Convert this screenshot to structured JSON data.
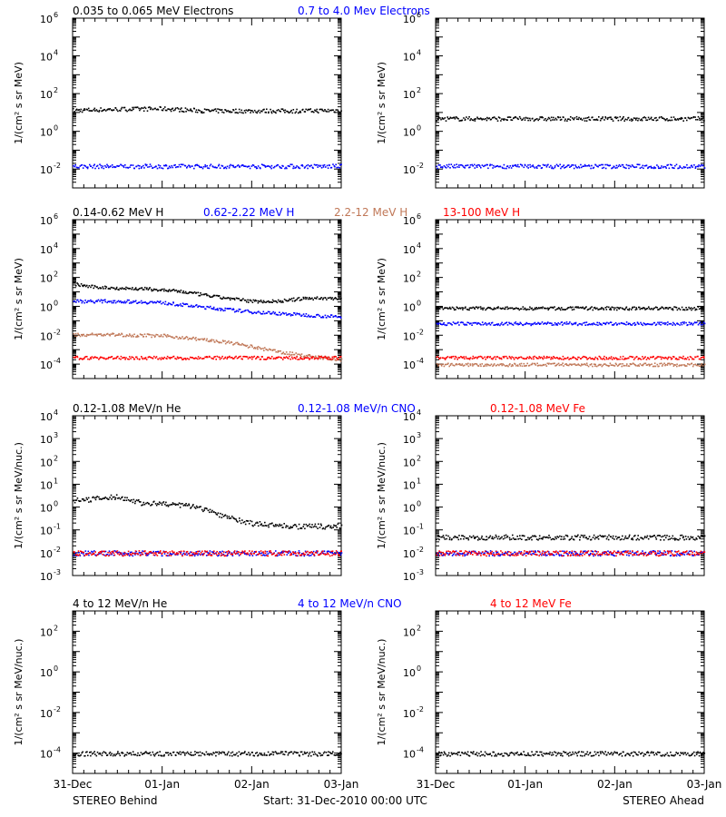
{
  "footer": {
    "left": "STEREO Behind",
    "center": "Start: 31-Dec-2010 00:00 UTC",
    "right": "STEREO Ahead"
  },
  "x_ticks": [
    "31-Dec",
    "01-Jan",
    "02-Jan",
    "03-Jan"
  ],
  "colors": {
    "black": "#000000",
    "blue": "#0000ff",
    "brown": "#c07858",
    "red": "#ff0000"
  },
  "chart_data": [
    {
      "id": "electrons-behind",
      "type": "scatter",
      "side": "behind",
      "titles": [
        {
          "text": "0.035 to 0.065 MeV Electrons",
          "color": "#000000"
        },
        {
          "text": "0.7 to 4.0 Mev Electrons",
          "color": "#0000ff"
        }
      ],
      "ylabel": "1/(cm² s sr MeV)",
      "yscale": "log",
      "ylim": [
        0.001,
        1000000
      ],
      "yticks": [
        {
          "exp": "-2"
        },
        {
          "exp": "0"
        },
        {
          "exp": "2"
        },
        {
          "exp": "4"
        },
        {
          "exp": "6"
        }
      ],
      "x_unit": "days since 31-Dec-2010 00:00 UTC",
      "xlim": [
        0,
        3
      ],
      "series": [
        {
          "color": "#000000",
          "x": [
            0,
            0.5,
            1,
            1.5,
            2,
            2.5,
            3
          ],
          "y": [
            14,
            16,
            17,
            13,
            13,
            13,
            14
          ]
        },
        {
          "color": "#0000ff",
          "x": [
            0,
            1,
            2,
            3
          ],
          "y": [
            0.015,
            0.015,
            0.015,
            0.015
          ]
        }
      ]
    },
    {
      "id": "electrons-ahead",
      "type": "scatter",
      "side": "ahead",
      "titles": [],
      "ylabel": "1/(cm² s sr MeV)",
      "yscale": "log",
      "ylim": [
        0.001,
        1000000
      ],
      "yticks": [
        {
          "exp": "-2"
        },
        {
          "exp": "0"
        },
        {
          "exp": "2"
        },
        {
          "exp": "4"
        },
        {
          "exp": "6"
        }
      ],
      "xlim": [
        0,
        3
      ],
      "series": [
        {
          "color": "#000000",
          "x": [
            0,
            1,
            2,
            3
          ],
          "y": [
            5,
            5,
            5,
            5
          ]
        },
        {
          "color": "#0000ff",
          "x": [
            0,
            1,
            2,
            3
          ],
          "y": [
            0.015,
            0.015,
            0.015,
            0.015
          ]
        }
      ]
    },
    {
      "id": "protons-behind",
      "type": "scatter",
      "side": "behind",
      "titles": [
        {
          "text": "0.14-0.62 MeV H",
          "color": "#000000"
        },
        {
          "text": "0.62-2.22 MeV H",
          "color": "#0000ff"
        },
        {
          "text": "2.2-12 MeV H",
          "color": "#c07858"
        },
        {
          "text": "13-100 MeV H",
          "color": "#ff0000"
        }
      ],
      "ylabel": "1/(cm² s sr MeV)",
      "yscale": "log",
      "ylim": [
        1e-05,
        1000000
      ],
      "yticks": [
        {
          "exp": "-4"
        },
        {
          "exp": "-2"
        },
        {
          "exp": "0"
        },
        {
          "exp": "2"
        },
        {
          "exp": "4"
        },
        {
          "exp": "6"
        }
      ],
      "xlim": [
        0,
        3
      ],
      "series": [
        {
          "color": "#000000",
          "x": [
            0,
            0.2,
            0.5,
            0.8,
            1.2,
            1.6,
            2.0,
            2.3,
            2.6,
            3.0
          ],
          "y": [
            40,
            25,
            20,
            18,
            12,
            5,
            2.5,
            2.5,
            4,
            4
          ]
        },
        {
          "color": "#0000ff",
          "x": [
            0,
            0.5,
            1.0,
            1.5,
            2.0,
            2.5,
            3.0
          ],
          "y": [
            2.5,
            2.5,
            2.0,
            0.9,
            0.45,
            0.3,
            0.2
          ]
        },
        {
          "color": "#c07858",
          "x": [
            0,
            0.5,
            1.0,
            1.4,
            1.8,
            2.2,
            2.5,
            2.8,
            3.0
          ],
          "y": [
            0.012,
            0.012,
            0.01,
            0.006,
            0.003,
            0.001,
            0.0005,
            0.0003,
            0.0002
          ]
        },
        {
          "color": "#ff0000",
          "x": [
            0,
            1,
            2,
            3
          ],
          "y": [
            0.0003,
            0.0003,
            0.0003,
            0.0003
          ]
        }
      ]
    },
    {
      "id": "protons-ahead",
      "type": "scatter",
      "side": "ahead",
      "titles": [],
      "ylabel": "1/(cm² s sr MeV)",
      "yscale": "log",
      "ylim": [
        1e-05,
        1000000
      ],
      "yticks": [
        {
          "exp": "-4"
        },
        {
          "exp": "-2"
        },
        {
          "exp": "0"
        },
        {
          "exp": "2"
        },
        {
          "exp": "4"
        },
        {
          "exp": "6"
        }
      ],
      "xlim": [
        0,
        3
      ],
      "series": [
        {
          "color": "#000000",
          "x": [
            0,
            1,
            2,
            3
          ],
          "y": [
            0.8,
            0.8,
            0.8,
            0.8
          ]
        },
        {
          "color": "#0000ff",
          "x": [
            0,
            1,
            2,
            3
          ],
          "y": [
            0.07,
            0.07,
            0.07,
            0.07
          ]
        },
        {
          "color": "#ff0000",
          "x": [
            0,
            1,
            2,
            3
          ],
          "y": [
            0.0003,
            0.0003,
            0.0003,
            0.0003
          ]
        },
        {
          "color": "#c07858",
          "x": [
            0,
            1,
            2,
            3
          ],
          "y": [
            0.0001,
            0.0001,
            0.0001,
            0.0001
          ]
        }
      ]
    },
    {
      "id": "heavy-low-behind",
      "type": "scatter",
      "side": "behind",
      "titles": [
        {
          "text": "0.12-1.08 MeV/n He",
          "color": "#000000"
        },
        {
          "text": "0.12-1.08 MeV/n CNO",
          "color": "#0000ff"
        },
        {
          "text": "0.12-1.08 MeV Fe",
          "color": "#ff0000"
        }
      ],
      "ylabel": "1/(cm² s sr MeV/nuc.)",
      "yscale": "log",
      "ylim": [
        0.001,
        10000
      ],
      "yticks": [
        {
          "label": "10",
          "exp": "-3"
        },
        {
          "label": "10",
          "exp": "-2"
        },
        {
          "label": "10",
          "exp": "-1"
        },
        {
          "label": "10",
          "exp": "0"
        },
        {
          "label": "10",
          "exp": "1"
        },
        {
          "label": "10",
          "exp": "2"
        },
        {
          "label": "10",
          "exp": "3"
        },
        {
          "label": "10",
          "exp": "4"
        }
      ],
      "xlim": [
        0,
        3
      ],
      "series": [
        {
          "color": "#000000",
          "x": [
            0,
            0.3,
            0.5,
            0.8,
            1.0,
            1.3,
            1.5,
            1.7,
            2.0,
            2.5,
            3.0
          ],
          "y": [
            2,
            2.5,
            3,
            1.5,
            1.5,
            1.2,
            0.8,
            0.4,
            0.2,
            0.15,
            0.15
          ]
        },
        {
          "color": "#0000ff",
          "x": [
            0,
            1,
            2,
            3
          ],
          "y": [
            0.01,
            0.01,
            0.01,
            0.01
          ]
        },
        {
          "color": "#ff0000",
          "x": [
            0,
            1,
            2,
            3
          ],
          "y": [
            0.01,
            0.01,
            0.01,
            0.01
          ]
        }
      ]
    },
    {
      "id": "heavy-low-ahead",
      "type": "scatter",
      "side": "ahead",
      "titles": [],
      "ylabel": "1/(cm² s sr MeV/nuc.)",
      "yscale": "log",
      "ylim": [
        0.001,
        10000
      ],
      "yticks": [
        {
          "label": "10",
          "exp": "-3"
        },
        {
          "label": "10",
          "exp": "-2"
        },
        {
          "label": "10",
          "exp": "-1"
        },
        {
          "label": "10",
          "exp": "0"
        },
        {
          "label": "10",
          "exp": "1"
        },
        {
          "label": "10",
          "exp": "2"
        },
        {
          "label": "10",
          "exp": "3"
        },
        {
          "label": "10",
          "exp": "4"
        }
      ],
      "xlim": [
        0,
        3
      ],
      "series": [
        {
          "color": "#000000",
          "x": [
            0,
            1,
            2,
            3
          ],
          "y": [
            0.05,
            0.05,
            0.05,
            0.05
          ]
        },
        {
          "color": "#0000ff",
          "x": [
            0,
            1,
            2,
            3
          ],
          "y": [
            0.01,
            0.01,
            0.01,
            0.01
          ]
        },
        {
          "color": "#ff0000",
          "x": [
            0,
            1,
            2,
            3
          ],
          "y": [
            0.01,
            0.01,
            0.01,
            0.01
          ]
        }
      ]
    },
    {
      "id": "heavy-high-behind",
      "type": "scatter",
      "side": "behind",
      "titles": [
        {
          "text": "4 to 12 MeV/n He",
          "color": "#000000"
        },
        {
          "text": "4 to 12 MeV/n CNO",
          "color": "#0000ff"
        },
        {
          "text": "4 to 12 MeV Fe",
          "color": "#ff0000"
        }
      ],
      "ylabel": "1/(cm² s sr MeV/nuc.)",
      "yscale": "log",
      "ylim": [
        1e-05,
        1000
      ],
      "yticks": [
        {
          "exp": "-4"
        },
        {
          "exp": "-2"
        },
        {
          "exp": "0"
        },
        {
          "exp": "2"
        }
      ],
      "xlim": [
        0,
        3
      ],
      "series": [
        {
          "color": "#000000",
          "x": [
            0,
            1,
            2,
            3
          ],
          "y": [
            0.0001,
            0.0001,
            0.0001,
            0.0001
          ]
        }
      ]
    },
    {
      "id": "heavy-high-ahead",
      "type": "scatter",
      "side": "ahead",
      "titles": [],
      "ylabel": "1/(cm² s sr MeV/nuc.)",
      "yscale": "log",
      "ylim": [
        1e-05,
        1000
      ],
      "yticks": [
        {
          "exp": "-4"
        },
        {
          "exp": "-2"
        },
        {
          "exp": "0"
        },
        {
          "exp": "2"
        }
      ],
      "xlim": [
        0,
        3
      ],
      "series": [
        {
          "color": "#000000",
          "x": [
            0,
            1,
            2,
            3
          ],
          "y": [
            0.0001,
            0.0001,
            0.0001,
            0.0001
          ]
        }
      ]
    }
  ]
}
